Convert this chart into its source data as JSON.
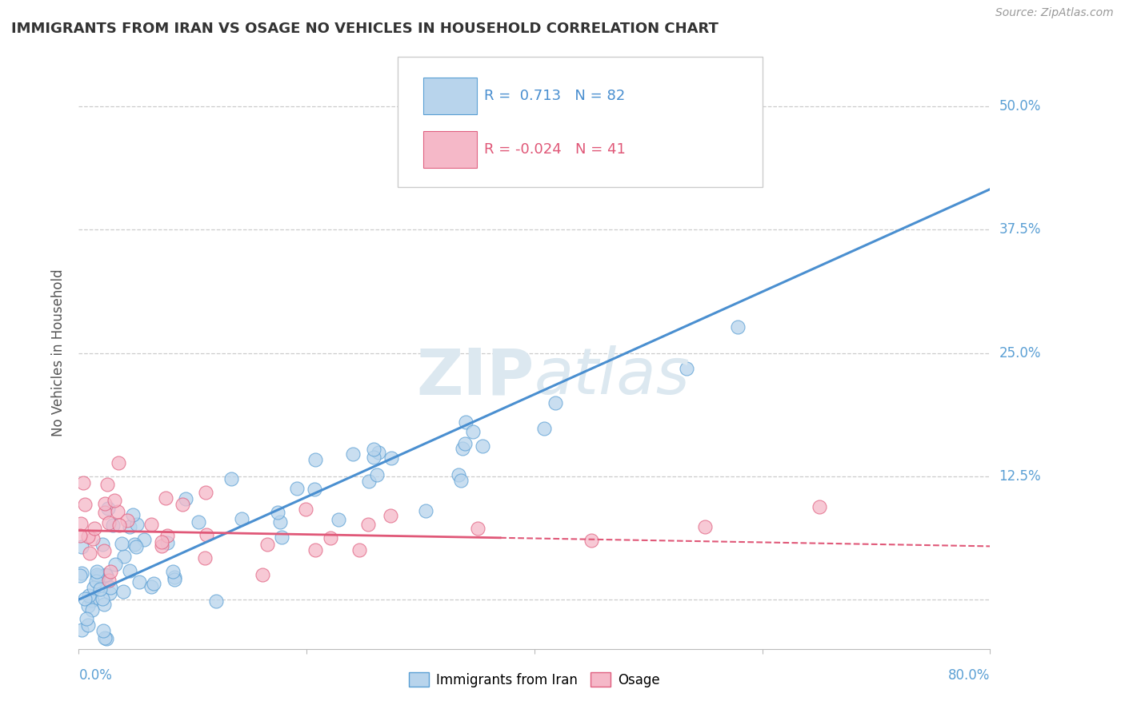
{
  "title": "IMMIGRANTS FROM IRAN VS OSAGE NO VEHICLES IN HOUSEHOLD CORRELATION CHART",
  "source_text": "Source: ZipAtlas.com",
  "ylabel": "No Vehicles in Household",
  "xmin": 0.0,
  "xmax": 80.0,
  "ymin": -5.0,
  "ymax": 55.0,
  "yticks": [
    0.0,
    12.5,
    25.0,
    37.5,
    50.0
  ],
  "blue_R": 0.713,
  "blue_N": 82,
  "pink_R": -0.024,
  "pink_N": 41,
  "blue_fill_color": "#b8d4ec",
  "pink_fill_color": "#f5b8c8",
  "blue_edge_color": "#5a9fd4",
  "pink_edge_color": "#e06080",
  "blue_line_color": "#4a8fd0",
  "pink_line_color": "#e05878",
  "watermark_color": "#dce8f0",
  "background_color": "#ffffff",
  "grid_color": "#cccccc",
  "title_color": "#333333",
  "axis_label_color": "#5a9fd4",
  "source_color": "#999999"
}
